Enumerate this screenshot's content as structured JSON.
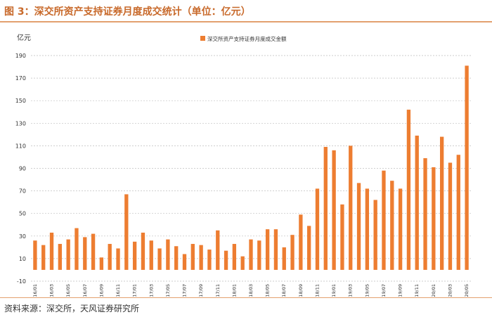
{
  "title": "图 3：深交所资产支持证券月度成交统计（单位：亿元）",
  "source": "资料来源：深交所，天风证券研究所",
  "colors": {
    "bar": "#ed7d31",
    "accent": "#c8692a",
    "rule": "#e3a06f"
  },
  "chart_data": {
    "type": "bar",
    "unit_label": "亿元",
    "legend_position": "top-center",
    "grid": true,
    "ylim": [
      -10,
      190
    ],
    "yticks": [
      -10,
      10,
      30,
      50,
      70,
      90,
      110,
      130,
      150,
      170,
      190
    ],
    "xtick_labels": [
      "16/01",
      "16/03",
      "16/05",
      "16/07",
      "16/09",
      "16/11",
      "17/01",
      "17/03",
      "17/05",
      "17/07",
      "17/09",
      "17/11",
      "18/01",
      "18/03",
      "18/05",
      "18/07",
      "18/09",
      "18/11",
      "19/01",
      "19/03",
      "19/05",
      "19/07",
      "19/09",
      "19/11",
      "20/01",
      "20/03",
      "20/05"
    ],
    "categories": [
      "16/01",
      "16/02",
      "16/03",
      "16/04",
      "16/05",
      "16/06",
      "16/07",
      "16/08",
      "16/09",
      "16/10",
      "16/11",
      "16/12",
      "17/01",
      "17/02",
      "17/03",
      "17/04",
      "17/05",
      "17/06",
      "17/07",
      "17/08",
      "17/09",
      "17/10",
      "17/11",
      "17/12",
      "18/01",
      "18/02",
      "18/03",
      "18/04",
      "18/05",
      "18/06",
      "18/07",
      "18/08",
      "18/09",
      "18/10",
      "18/11",
      "18/12",
      "19/01",
      "19/02",
      "19/03",
      "19/04",
      "19/05",
      "19/06",
      "19/07",
      "19/08",
      "19/09",
      "19/10",
      "19/11",
      "19/12",
      "20/01",
      "20/02",
      "20/03",
      "20/04",
      "20/05"
    ],
    "series": [
      {
        "name": "深交所资产支持证券月度成交金额",
        "values": [
          26,
          22,
          33,
          23,
          27,
          37,
          29,
          32,
          11,
          23,
          19,
          67,
          25,
          33,
          26,
          19,
          27,
          21,
          14,
          23,
          22,
          18,
          35,
          17,
          23,
          12,
          27,
          26,
          36,
          36,
          20,
          31,
          49,
          39,
          72,
          109,
          106,
          58,
          110,
          77,
          72,
          62,
          88,
          79,
          72,
          142,
          119,
          99,
          91,
          118,
          95,
          102,
          181
        ]
      }
    ]
  }
}
